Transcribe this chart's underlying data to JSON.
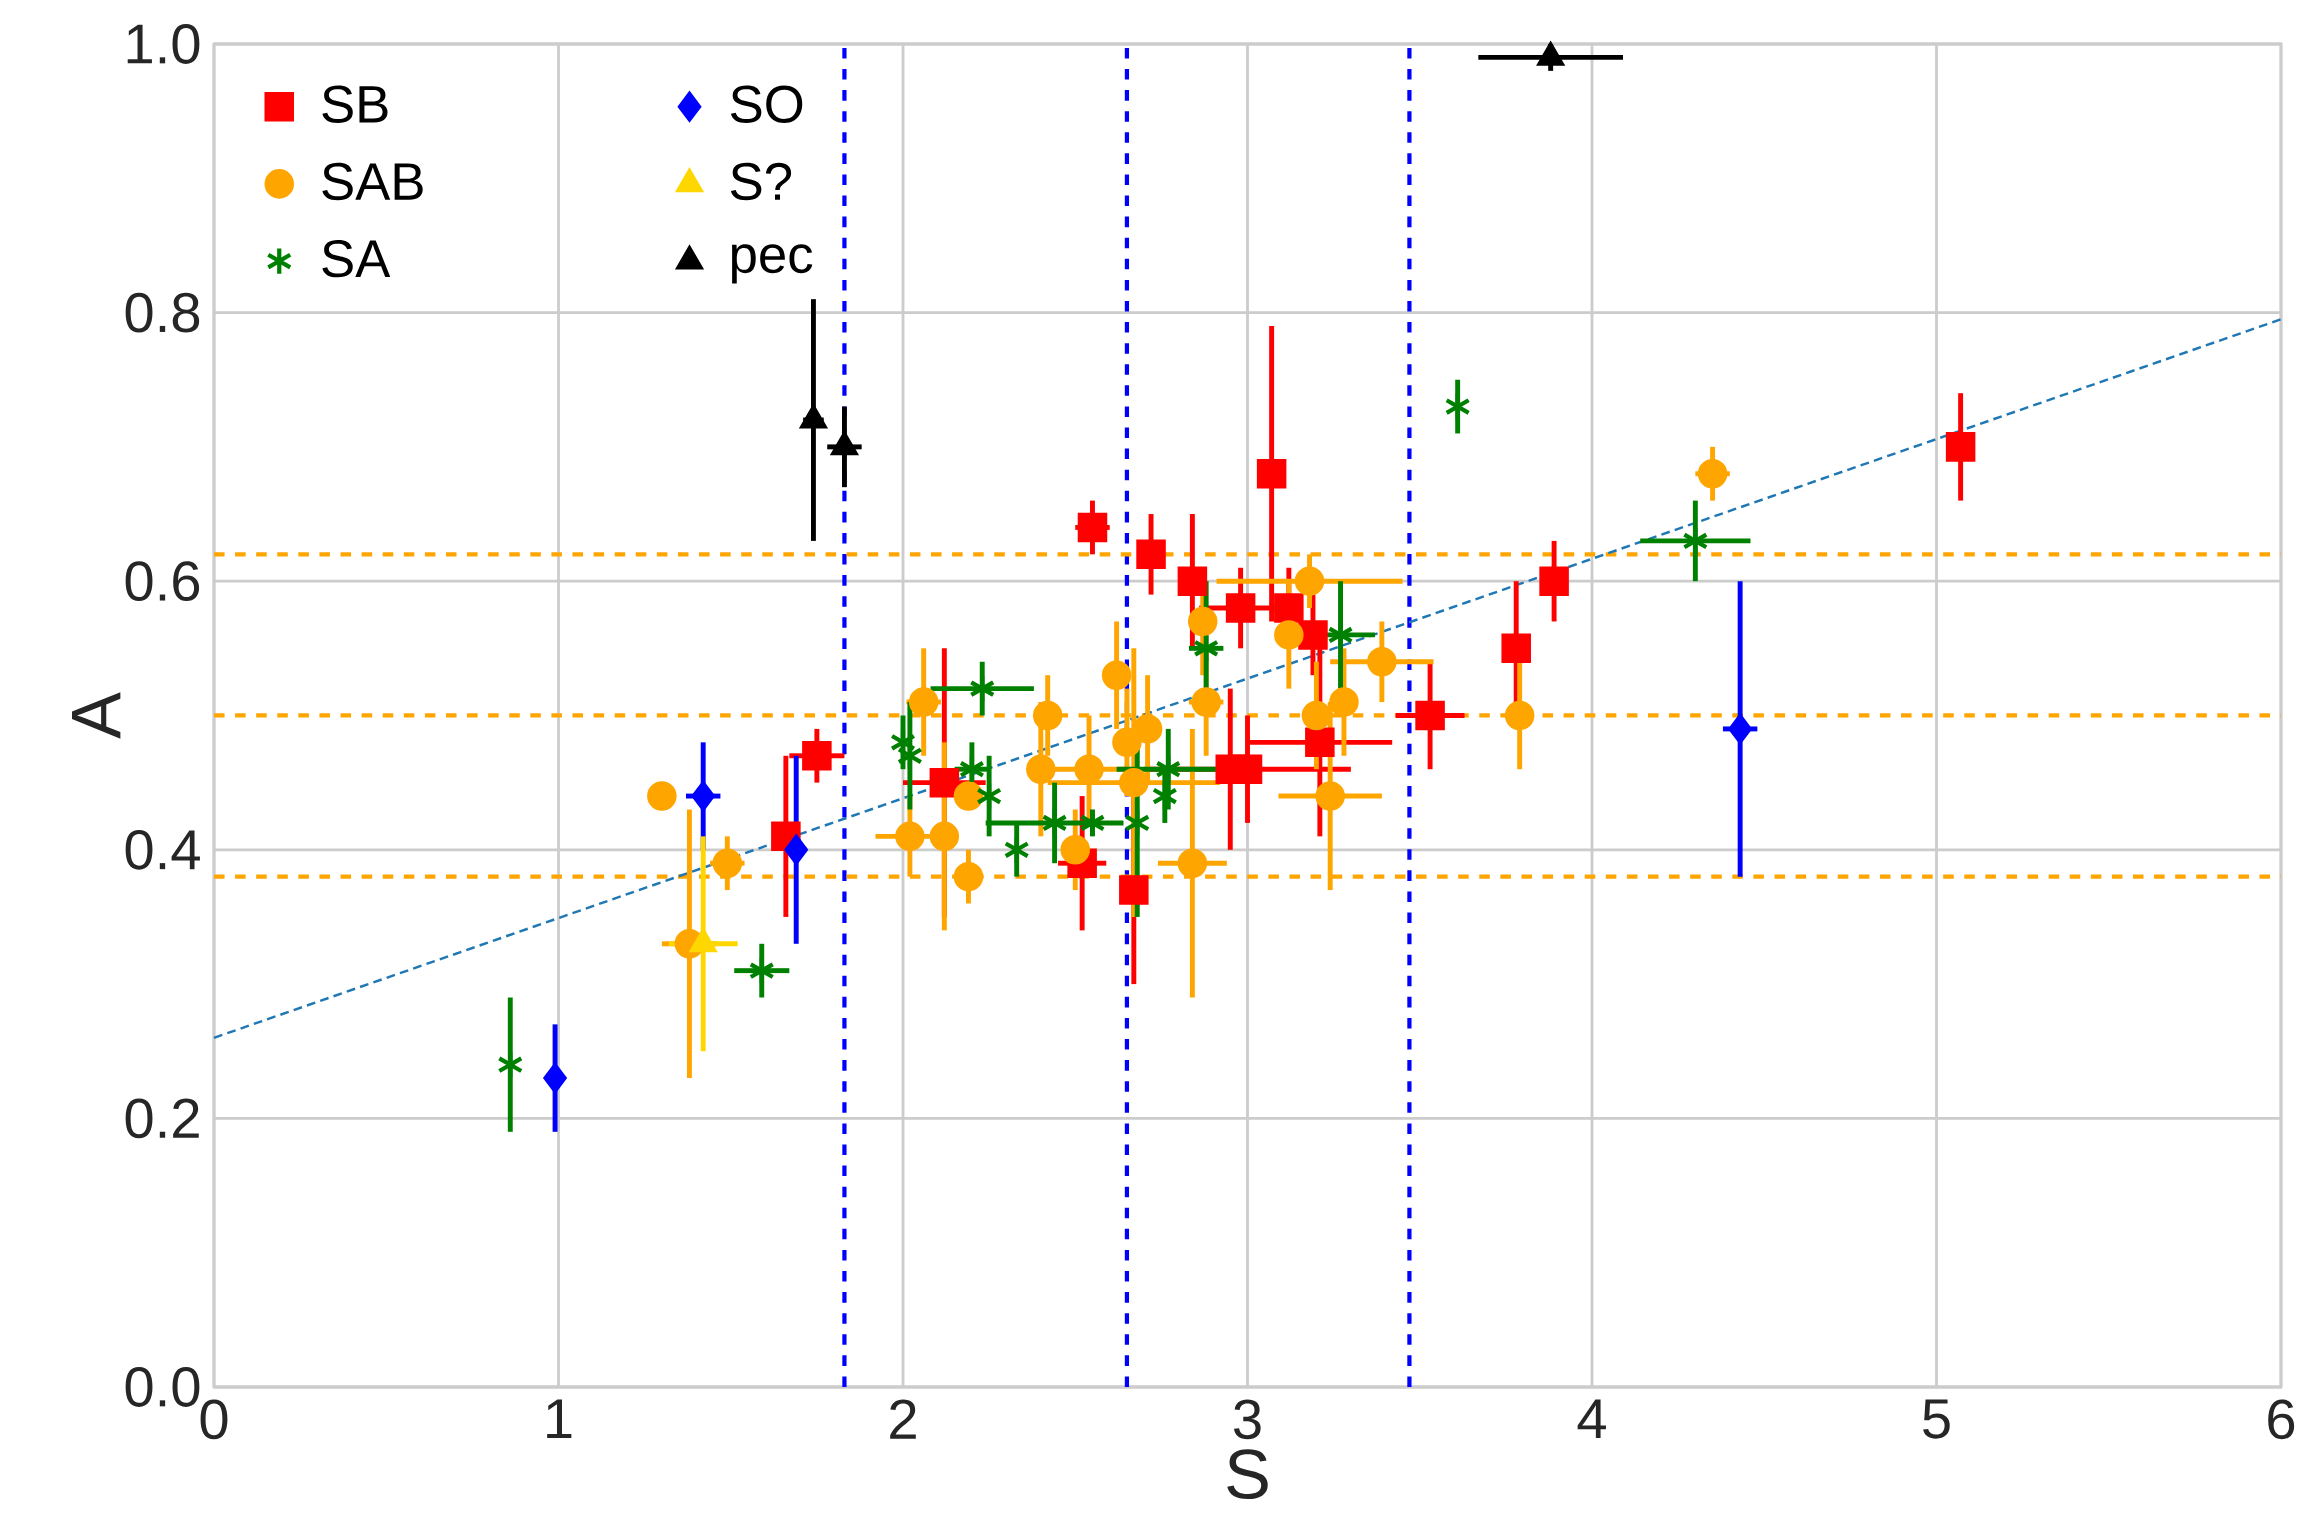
{
  "chart_data": {
    "type": "scatter",
    "xlabel": "S",
    "ylabel": "A",
    "xlim": [
      0,
      6
    ],
    "ylim": [
      0,
      1.0
    ],
    "xticks": [
      0,
      1,
      2,
      3,
      4,
      5,
      6
    ],
    "yticks": [
      {
        "value": 0,
        "label": "0.0"
      },
      {
        "value": 0.2,
        "label": "0.2"
      },
      {
        "value": 0.4,
        "label": "0.4"
      },
      {
        "value": 0.6,
        "label": "0.6"
      },
      {
        "value": 0.8,
        "label": "0.8"
      },
      {
        "value": 1.0,
        "label": "1.0"
      }
    ],
    "grid": true,
    "legend": "top left",
    "series": [
      {
        "name": "SB",
        "color": "#ff0000",
        "marker": "square",
        "x": [
          1.66,
          1.75,
          2.12,
          2.55,
          2.52,
          2.67,
          2.72,
          2.84,
          2.98,
          3.07,
          3.12,
          3.19,
          2.95,
          3.0,
          3.21,
          3.53,
          3.78,
          3.89,
          5.07
        ],
        "values": [
          0.41,
          0.47,
          0.45,
          0.64,
          0.39,
          0.37,
          0.62,
          0.6,
          0.58,
          0.68,
          0.58,
          0.56,
          0.46,
          0.46,
          0.48,
          0.5,
          0.55,
          0.6,
          0.7
        ],
        "errors": [
          0.06,
          0.02,
          0.1,
          0.02,
          0.05,
          0.07,
          0.03,
          0.05,
          0.03,
          0.11,
          0.03,
          0.03,
          0.06,
          0.04,
          0.07,
          0.04,
          0.05,
          0.03,
          0.04
        ],
        "xerrors": [
          0.03,
          0.08,
          0.12,
          0.05,
          0.07,
          0.03,
          0.02,
          0.03,
          0.12,
          0.03,
          null,
          0.03,
          null,
          0.3,
          0.21,
          0.1,
          0.02,
          0.02,
          0.03
        ]
      },
      {
        "name": "SAB",
        "color": "#ffa500",
        "marker": "circle",
        "x": [
          1.3,
          1.38,
          1.49,
          2.02,
          2.06,
          2.12,
          2.19,
          2.19,
          2.4,
          2.42,
          2.5,
          2.54,
          2.62,
          2.65,
          2.67,
          2.71,
          2.84,
          2.87,
          2.88,
          3.12,
          3.18,
          3.2,
          3.24,
          3.28,
          3.39,
          3.79,
          4.35
        ],
        "values": [
          0.44,
          0.33,
          0.39,
          0.41,
          0.51,
          0.41,
          0.38,
          0.44,
          0.46,
          0.5,
          0.4,
          0.46,
          0.53,
          0.48,
          0.45,
          0.49,
          0.39,
          0.57,
          0.51,
          0.56,
          0.6,
          0.5,
          0.44,
          0.51,
          0.54,
          0.5,
          0.68
        ],
        "errors": [
          0.005,
          0.1,
          0.02,
          0.03,
          0.04,
          0.07,
          0.02,
          0.005,
          0.05,
          0.03,
          0.03,
          0.04,
          0.04,
          0.04,
          0.1,
          0.04,
          0.1,
          0.04,
          0.04,
          0.04,
          0.02,
          0.04,
          0.07,
          0.04,
          0.03,
          0.04,
          0.02
        ],
        "xerrors": [
          0.03,
          0.08,
          0.05,
          0.1,
          0.05,
          null,
          null,
          0.03,
          null,
          null,
          0.03,
          0.12,
          0.03,
          0.03,
          0.25,
          0.03,
          0.1,
          0.03,
          0.05,
          0.03,
          0.27,
          null,
          0.15,
          0.03,
          0.15,
          0.02,
          0.05
        ]
      },
      {
        "name": "SA",
        "color": "#008000",
        "marker": "cross",
        "x": [
          0.86,
          1.59,
          2.0,
          2.02,
          2.2,
          2.23,
          2.25,
          2.33,
          2.44,
          2.55,
          2.68,
          2.76,
          2.77,
          2.88,
          3.27,
          3.61,
          4.3
        ],
        "values": [
          0.24,
          0.31,
          0.48,
          0.47,
          0.46,
          0.52,
          0.44,
          0.4,
          0.42,
          0.42,
          0.42,
          0.44,
          0.46,
          0.55,
          0.56,
          0.73,
          0.63
        ],
        "errors": [
          0.05,
          0.02,
          0.02,
          0.04,
          0.02,
          0.02,
          0.03,
          0.02,
          0.03,
          0.01,
          0.07,
          0.02,
          0.03,
          0.05,
          0.04,
          0.02,
          0.03
        ],
        "xerrors": [
          null,
          0.08,
          null,
          null,
          0.05,
          0.15,
          null,
          null,
          0.2,
          null,
          null,
          null,
          0.15,
          0.05,
          0.1,
          null,
          0.16
        ]
      },
      {
        "name": "SO",
        "color": "#0000ff",
        "marker": "diamond",
        "x": [
          0.99,
          1.42,
          1.69,
          4.43
        ],
        "values": [
          0.23,
          0.44,
          0.4,
          0.49
        ],
        "errors": [
          0.04,
          0.04,
          0.07,
          0.11
        ],
        "xerrors": [
          0.01,
          0.05,
          0.03,
          0.05
        ]
      },
      {
        "name": "S?",
        "color": "#ffd700",
        "marker": "triangle",
        "x": [
          1.42
        ],
        "values": [
          0.33
        ],
        "errors": [
          0.08
        ],
        "xerrors": [
          0.1
        ]
      },
      {
        "name": "pec",
        "color": "#000000",
        "marker": "triangle",
        "x": [
          1.74,
          1.83,
          3.88
        ],
        "values": [
          0.72,
          0.7,
          0.99
        ],
        "errors": [
          0.09,
          0.03,
          0.01
        ],
        "xerrors": [
          0.03,
          0.05,
          0.21
        ]
      },
      {
        "type": "line",
        "color": "#1f77b4",
        "line_style": "dashed",
        "x": [
          0,
          6
        ],
        "values": [
          0.26,
          0.795
        ]
      }
    ],
    "ref_lines": [
      {
        "axis": "x",
        "value": 1.83,
        "color": "#0000ff",
        "line_style": "dashed"
      },
      {
        "axis": "x",
        "value": 2.65,
        "color": "#0000ff",
        "line_style": "dashed"
      },
      {
        "axis": "x",
        "value": 3.47,
        "color": "#0000ff",
        "line_style": "dashed"
      },
      {
        "axis": "y",
        "value": 0.38,
        "color": "#ffa500",
        "line_style": "dashed"
      },
      {
        "axis": "y",
        "value": 0.5,
        "color": "#ffa500",
        "line_style": "dashed"
      },
      {
        "axis": "y",
        "value": 0.62,
        "color": "#ffa500",
        "line_style": "dashed"
      }
    ]
  }
}
